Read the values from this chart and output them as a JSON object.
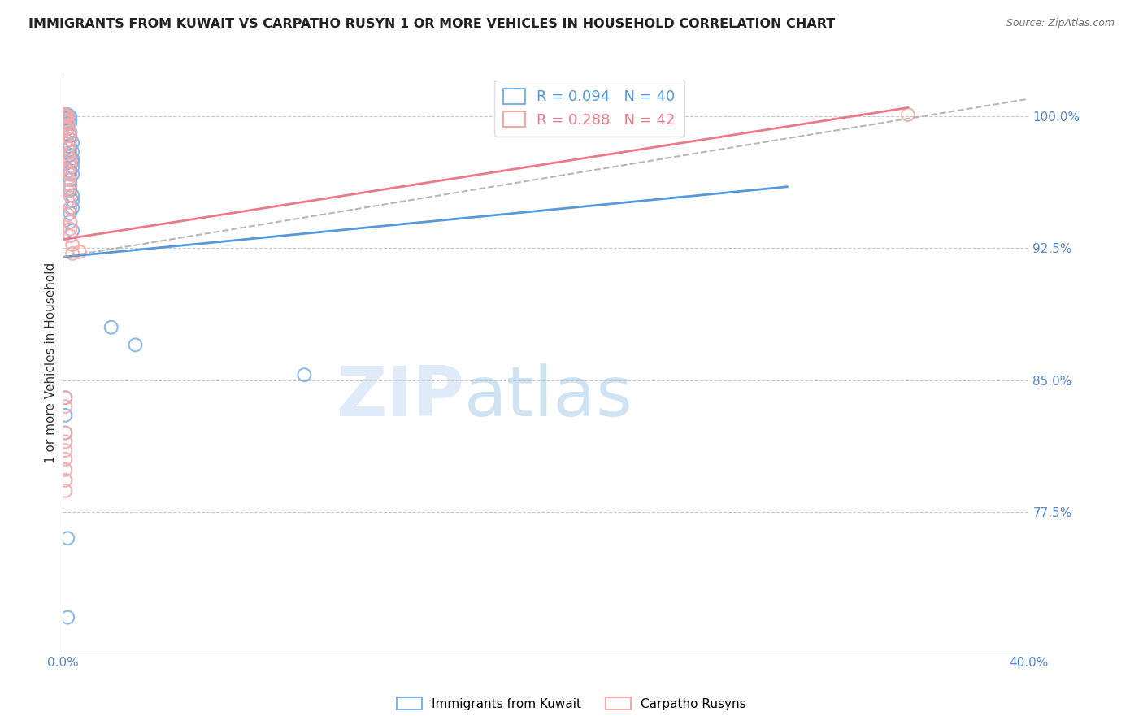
{
  "title": "IMMIGRANTS FROM KUWAIT VS CARPATHO RUSYN 1 OR MORE VEHICLES IN HOUSEHOLD CORRELATION CHART",
  "source": "Source: ZipAtlas.com",
  "ylabel": "1 or more Vehicles in Household",
  "legend_label_blue": "Immigrants from Kuwait",
  "legend_label_pink": "Carpatho Rusyns",
  "R_blue": 0.094,
  "N_blue": 40,
  "R_pink": 0.288,
  "N_pink": 42,
  "xlim": [
    0.0,
    0.4
  ],
  "ylim": [
    0.695,
    1.025
  ],
  "yticks": [
    0.775,
    0.85,
    0.925,
    1.0
  ],
  "ytick_labels": [
    "77.5%",
    "85.0%",
    "92.5%",
    "100.0%"
  ],
  "xticks": [
    0.0,
    0.05,
    0.1,
    0.15,
    0.2,
    0.25,
    0.3,
    0.35,
    0.4
  ],
  "xtick_labels": [
    "0.0%",
    "",
    "",
    "",
    "",
    "",
    "",
    "",
    "40.0%"
  ],
  "color_blue": "#7EB3E8",
  "color_pink": "#F4AAAA",
  "color_blue_line": "#5599DD",
  "color_pink_line": "#EE7788",
  "color_dashed": "#AAAAAA",
  "watermark_zip": "ZIP",
  "watermark_atlas": "atlas",
  "blue_dots": [
    [
      0.0,
      1.001
    ],
    [
      0.001,
      1.001
    ],
    [
      0.001,
      0.999
    ],
    [
      0.002,
      1.001
    ],
    [
      0.002,
      0.999
    ],
    [
      0.001,
      0.997
    ],
    [
      0.002,
      0.996
    ],
    [
      0.003,
      1.0
    ],
    [
      0.003,
      0.998
    ],
    [
      0.003,
      0.996
    ],
    [
      0.002,
      0.993
    ],
    [
      0.003,
      0.991
    ],
    [
      0.003,
      0.989
    ],
    [
      0.003,
      0.987
    ],
    [
      0.004,
      0.985
    ],
    [
      0.003,
      0.983
    ],
    [
      0.004,
      0.98
    ],
    [
      0.003,
      0.978
    ],
    [
      0.004,
      0.976
    ],
    [
      0.004,
      0.974
    ],
    [
      0.004,
      0.971
    ],
    [
      0.003,
      0.969
    ],
    [
      0.004,
      0.967
    ],
    [
      0.003,
      0.964
    ],
    [
      0.003,
      0.961
    ],
    [
      0.003,
      0.958
    ],
    [
      0.004,
      0.955
    ],
    [
      0.004,
      0.952
    ],
    [
      0.004,
      0.948
    ],
    [
      0.003,
      0.945
    ],
    [
      0.003,
      0.94
    ],
    [
      0.004,
      0.935
    ],
    [
      0.02,
      0.88
    ],
    [
      0.03,
      0.87
    ],
    [
      0.001,
      0.84
    ],
    [
      0.001,
      0.83
    ],
    [
      0.001,
      0.82
    ],
    [
      0.1,
      0.853
    ],
    [
      0.002,
      0.76
    ],
    [
      0.002,
      0.715
    ]
  ],
  "pink_dots": [
    [
      0.0,
      1.001
    ],
    [
      0.001,
      1.001
    ],
    [
      0.001,
      1.0
    ],
    [
      0.002,
      1.0
    ],
    [
      0.001,
      0.998
    ],
    [
      0.002,
      0.997
    ],
    [
      0.001,
      0.995
    ],
    [
      0.002,
      0.993
    ],
    [
      0.003,
      0.991
    ],
    [
      0.002,
      0.989
    ],
    [
      0.003,
      0.987
    ],
    [
      0.001,
      0.985
    ],
    [
      0.002,
      0.982
    ],
    [
      0.003,
      0.98
    ],
    [
      0.002,
      0.977
    ],
    [
      0.003,
      0.975
    ],
    [
      0.003,
      0.972
    ],
    [
      0.002,
      0.969
    ],
    [
      0.003,
      0.967
    ],
    [
      0.002,
      0.964
    ],
    [
      0.003,
      0.961
    ],
    [
      0.002,
      0.958
    ],
    [
      0.003,
      0.955
    ],
    [
      0.002,
      0.952
    ],
    [
      0.003,
      0.948
    ],
    [
      0.002,
      0.944
    ],
    [
      0.003,
      0.94
    ],
    [
      0.003,
      0.936
    ],
    [
      0.003,
      0.932
    ],
    [
      0.004,
      0.927
    ],
    [
      0.004,
      0.922
    ],
    [
      0.001,
      0.84
    ],
    [
      0.001,
      0.835
    ],
    [
      0.001,
      0.82
    ],
    [
      0.001,
      0.815
    ],
    [
      0.001,
      0.81
    ],
    [
      0.001,
      0.805
    ],
    [
      0.001,
      0.799
    ],
    [
      0.001,
      0.793
    ],
    [
      0.001,
      0.787
    ],
    [
      0.35,
      1.001
    ],
    [
      0.007,
      0.923
    ]
  ],
  "blue_line_x": [
    0.0,
    0.3
  ],
  "blue_line_y": [
    0.92,
    0.96
  ],
  "pink_line_x": [
    0.0,
    0.35
  ],
  "pink_line_y": [
    0.93,
    1.005
  ],
  "dashed_line_x": [
    0.0,
    0.4
  ],
  "dashed_line_y": [
    0.92,
    1.01
  ]
}
